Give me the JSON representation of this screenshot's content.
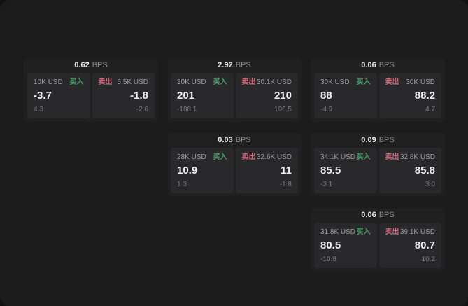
{
  "colors": {
    "buy_green": "#47a46a",
    "sell_red": "#cf6679",
    "card_bg": "#202021",
    "panel_bg": "#29292b"
  },
  "cards": [
    {
      "bps_value": "0.62",
      "bps_unit": "BPS",
      "buy": {
        "amount": "10K USD",
        "side_label": "买入",
        "value": "-3.7",
        "sub": "4.3"
      },
      "sell": {
        "side_label": "卖出",
        "amount": "5.5K USD",
        "value": "-1.8",
        "sub": "-2.6"
      }
    },
    {
      "bps_value": "2.92",
      "bps_unit": "BPS",
      "buy": {
        "amount": "30K USD",
        "side_label": "买入",
        "value": "201",
        "sub": "-188.1"
      },
      "sell": {
        "side_label": "卖出",
        "amount": "30.1K USD",
        "value": "210",
        "sub": "196.5"
      }
    },
    {
      "bps_value": "0.06",
      "bps_unit": "BPS",
      "buy": {
        "amount": "30K USD",
        "side_label": "买入",
        "value": "88",
        "sub": "-4.9"
      },
      "sell": {
        "side_label": "卖出",
        "amount": "30K USD",
        "value": "88.2",
        "sub": "4.7"
      }
    },
    {
      "bps_value": "0.03",
      "bps_unit": "BPS",
      "buy": {
        "amount": "28K USD",
        "side_label": "买入",
        "value": "10.9",
        "sub": "1.3"
      },
      "sell": {
        "side_label": "卖出",
        "amount": "32.6K USD",
        "value": "11",
        "sub": "-1.8"
      }
    },
    {
      "bps_value": "0.09",
      "bps_unit": "BPS",
      "buy": {
        "amount": "34.1K USD",
        "side_label": "买入",
        "value": "85.5",
        "sub": "-3.1"
      },
      "sell": {
        "side_label": "卖出",
        "amount": "32.8K USD",
        "value": "85.8",
        "sub": "3.0"
      }
    },
    {
      "bps_value": "0.06",
      "bps_unit": "BPS",
      "buy": {
        "amount": "31.8K USD",
        "side_label": "买入",
        "value": "80.5",
        "sub": "-10.8"
      },
      "sell": {
        "side_label": "卖出",
        "amount": "39.1K USD",
        "value": "80.7",
        "sub": "10.2"
      }
    }
  ]
}
